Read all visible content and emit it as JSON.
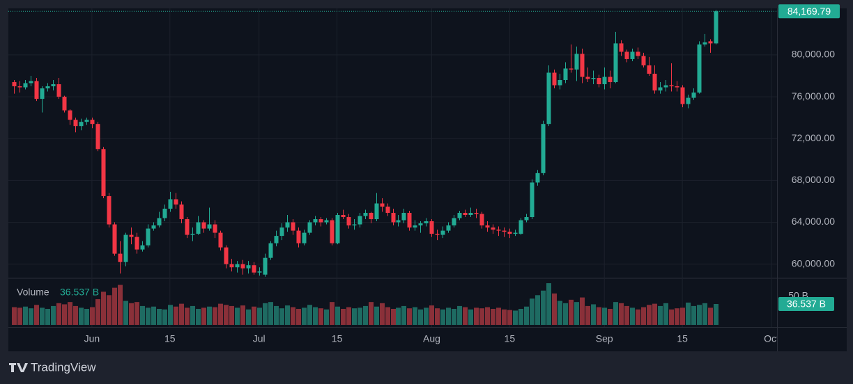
{
  "chart_data": {
    "type": "candlestick",
    "brand": "TradingView",
    "volume_title": "Volume",
    "x": [
      "May 18",
      "May 19",
      "May 20",
      "May 21",
      "May 22",
      "May 23",
      "May 24",
      "May 25",
      "May 26",
      "May 27",
      "May 28",
      "May 29",
      "May 30",
      "May 31",
      "Jun 1",
      "Jun 2",
      "Jun 3",
      "Jun 4",
      "Jun 5",
      "Jun 6",
      "Jun 7",
      "Jun 8",
      "Jun 9",
      "Jun 10",
      "Jun 11",
      "Jun 12",
      "Jun 13",
      "Jun 14",
      "Jun 15",
      "Jun 16",
      "Jun 17",
      "Jun 18",
      "Jun 19",
      "Jun 20",
      "Jun 21",
      "Jun 22",
      "Jun 23",
      "Jun 24",
      "Jun 25",
      "Jun 26",
      "Jun 27",
      "Jun 28",
      "Jun 29",
      "Jun 30",
      "Jul 1",
      "Jul 2",
      "Jul 3",
      "Jul 4",
      "Jul 5",
      "Jul 6",
      "Jul 7",
      "Jul 8",
      "Jul 9",
      "Jul 10",
      "Jul 11",
      "Jul 12",
      "Jul 13",
      "Jul 14",
      "Jul 15",
      "Jul 16",
      "Jul 17",
      "Jul 18",
      "Jul 19",
      "Jul 20",
      "Jul 21",
      "Jul 22",
      "Jul 23",
      "Jul 24",
      "Jul 25",
      "Jul 26",
      "Jul 27",
      "Jul 28",
      "Jul 29",
      "Jul 30",
      "Jul 31",
      "Aug 1",
      "Aug 2",
      "Aug 3",
      "Aug 4",
      "Aug 5",
      "Aug 6",
      "Aug 7",
      "Aug 8",
      "Aug 9",
      "Aug 10",
      "Aug 11",
      "Aug 12",
      "Aug 13",
      "Aug 14",
      "Aug 15",
      "Aug 16",
      "Aug 17",
      "Aug 18",
      "Aug 19",
      "Aug 20",
      "Aug 21",
      "Aug 22",
      "Aug 23",
      "Aug 24",
      "Aug 25",
      "Aug 26",
      "Aug 27",
      "Aug 28",
      "Aug 29",
      "Aug 30",
      "Aug 31",
      "Sep 1",
      "Sep 2",
      "Sep 3",
      "Sep 4",
      "Sep 5",
      "Sep 6",
      "Sep 7",
      "Sep 8",
      "Sep 9",
      "Sep 10",
      "Sep 11",
      "Sep 12",
      "Sep 13",
      "Sep 14",
      "Sep 15",
      "Sep 16",
      "Sep 17",
      "Sep 18",
      "Sep 19",
      "Sep 20",
      "Sep 21"
    ],
    "open": [
      77400,
      77000,
      76900,
      77300,
      77500,
      75800,
      76800,
      77000,
      77200,
      76000,
      74700,
      73800,
      73200,
      73600,
      73800,
      73400,
      71000,
      66500,
      63800,
      61000,
      60200,
      62800,
      62600,
      61400,
      61800,
      63400,
      63700,
      64400,
      65300,
      66200,
      65700,
      64300,
      62800,
      62900,
      64000,
      63400,
      63800,
      63000,
      61600,
      60000,
      59700,
      60000,
      59600,
      59900,
      59200,
      59000,
      60600,
      62000,
      62700,
      63500,
      64000,
      63200,
      62000,
      63000,
      64000,
      64300,
      64000,
      64200,
      62000,
      64700,
      64500,
      63700,
      63800,
      64600,
      64900,
      64300,
      65800,
      65500,
      64900,
      64000,
      64200,
      64900,
      63500,
      63700,
      63900,
      64100,
      62900,
      62800,
      63200,
      63700,
      64400,
      64900,
      64700,
      64900,
      64800,
      63700,
      63500,
      63300,
      63200,
      63100,
      62900,
      62900,
      64200,
      64500,
      67800,
      68700,
      73400,
      78300,
      77100,
      77600,
      78700,
      78600,
      80100,
      77900,
      77700,
      77800,
      77200,
      77900,
      77400,
      81100,
      80300,
      79600,
      80300,
      79900,
      79000,
      78200,
      76600,
      76900,
      77100,
      77000,
      76900,
      75300,
      75900,
      76400,
      81000,
      81300,
      81100
    ],
    "high": [
      77600,
      77500,
      77600,
      78000,
      77800,
      77000,
      77300,
      77600,
      77800,
      76100,
      74800,
      74000,
      73900,
      74000,
      74000,
      73600,
      71200,
      66800,
      64000,
      62200,
      63000,
      63500,
      63000,
      62200,
      63800,
      64000,
      65000,
      65700,
      66900,
      66800,
      66000,
      64500,
      63500,
      64600,
      64200,
      65400,
      64200,
      63200,
      61800,
      60500,
      60300,
      60400,
      60300,
      60200,
      59700,
      61000,
      62200,
      63200,
      63900,
      64700,
      64300,
      63500,
      63300,
      64200,
      64600,
      64500,
      64400,
      64400,
      64900,
      65200,
      64800,
      64300,
      64900,
      65200,
      65000,
      66800,
      66300,
      65800,
      65300,
      64700,
      65300,
      65100,
      64200,
      64100,
      64400,
      64300,
      63300,
      63600,
      64000,
      64700,
      65100,
      65200,
      65400,
      65300,
      65000,
      64100,
      63800,
      63600,
      63500,
      63400,
      63300,
      64400,
      64800,
      68100,
      69000,
      73700,
      79000,
      78600,
      78200,
      79300,
      81000,
      80800,
      80600,
      78800,
      78500,
      78100,
      78800,
      78500,
      82200,
      81400,
      80500,
      80600,
      80700,
      80200,
      79800,
      79000,
      77400,
      77600,
      79200,
      77500,
      77100,
      76200,
      76800,
      81300,
      82000,
      81500,
      84300
    ],
    "low": [
      76300,
      76400,
      76700,
      77000,
      75600,
      74500,
      76500,
      76600,
      75800,
      74500,
      73300,
      72600,
      72800,
      73300,
      73000,
      70800,
      66300,
      63500,
      60800,
      59100,
      59800,
      61900,
      61000,
      61200,
      61600,
      63200,
      63500,
      64100,
      65000,
      65300,
      63900,
      62500,
      62200,
      62800,
      63000,
      63200,
      62500,
      61300,
      59600,
      59300,
      59200,
      59000,
      59100,
      59000,
      58900,
      58800,
      60400,
      61700,
      62300,
      63100,
      62800,
      61600,
      61800,
      62800,
      63700,
      63600,
      63800,
      61800,
      61900,
      64300,
      63400,
      63300,
      63500,
      64300,
      63900,
      64100,
      65000,
      64600,
      63700,
      63600,
      63900,
      63200,
      63200,
      63000,
      63600,
      62600,
      62300,
      62500,
      63000,
      63500,
      64200,
      64500,
      64500,
      64400,
      63400,
      63100,
      62900,
      62700,
      62600,
      62500,
      62700,
      62800,
      64000,
      64300,
      67500,
      68500,
      73200,
      76800,
      76700,
      77300,
      78300,
      77500,
      77300,
      77400,
      77200,
      76900,
      76700,
      76800,
      77300,
      79900,
      79300,
      79400,
      79600,
      78800,
      78000,
      76300,
      76300,
      76500,
      76500,
      76500,
      75000,
      74900,
      75700,
      76300,
      80800,
      80200,
      81000
    ],
    "close": [
      77000,
      76900,
      77300,
      77500,
      75800,
      76800,
      77000,
      77200,
      76000,
      74700,
      73800,
      73200,
      73600,
      73800,
      73400,
      71000,
      66500,
      63800,
      61000,
      60200,
      62800,
      62600,
      61400,
      61800,
      63400,
      63700,
      64400,
      65300,
      66200,
      65700,
      64300,
      62800,
      62900,
      64000,
      63400,
      63800,
      63000,
      61600,
      60000,
      59700,
      60000,
      59600,
      59900,
      59200,
      59300,
      60600,
      62000,
      62700,
      63500,
      64000,
      63200,
      62000,
      63000,
      64000,
      64300,
      64000,
      64200,
      62000,
      64700,
      64500,
      63700,
      63800,
      64600,
      64900,
      64300,
      65800,
      65500,
      64900,
      64000,
      64200,
      64900,
      63500,
      63700,
      63900,
      64100,
      62900,
      62800,
      63200,
      63700,
      64400,
      64900,
      64700,
      64900,
      64800,
      63700,
      63500,
      63300,
      63200,
      63100,
      62900,
      63000,
      64200,
      64500,
      67800,
      68700,
      73400,
      78300,
      77100,
      77600,
      78700,
      78600,
      80100,
      77900,
      77700,
      77800,
      77200,
      77900,
      77400,
      81100,
      80300,
      79600,
      80300,
      79900,
      79000,
      78200,
      76600,
      76900,
      77100,
      77000,
      76900,
      75300,
      75900,
      76400,
      81000,
      81200,
      81100,
      84169.79
    ],
    "volume": [
      31,
      30,
      32,
      29,
      35,
      30,
      28,
      33,
      38,
      36,
      40,
      33,
      30,
      28,
      31,
      45,
      58,
      52,
      65,
      70,
      42,
      38,
      40,
      33,
      30,
      32,
      28,
      27,
      35,
      32,
      37,
      30,
      33,
      28,
      30,
      32,
      31,
      37,
      35,
      33,
      30,
      34,
      27,
      32,
      30,
      38,
      40,
      33,
      29,
      34,
      31,
      28,
      30,
      35,
      31,
      29,
      27,
      40,
      32,
      28,
      31,
      29,
      30,
      33,
      40,
      32,
      38,
      31,
      28,
      30,
      33,
      29,
      31,
      27,
      30,
      34,
      29,
      27,
      30,
      28,
      33,
      31,
      27,
      30,
      29,
      31,
      28,
      30,
      27,
      26,
      25,
      28,
      32,
      46,
      52,
      60,
      73,
      55,
      42,
      38,
      44,
      40,
      48,
      33,
      36,
      31,
      30,
      28,
      40,
      38,
      33,
      30,
      27,
      31,
      35,
      37,
      33,
      38,
      27,
      29,
      30,
      39,
      33,
      35,
      38,
      30,
      36.537
    ],
    "last_close_label": "84,169.79",
    "last_volume_label": "36.537 B",
    "up_color": "#22ab94",
    "down_color": "#f23645",
    "up_volume_color": "#1e6b62",
    "down_volume_color": "#8a3039",
    "xlim": [
      "May 17",
      "Oct 2"
    ],
    "xticks": [
      {
        "value": "Jun 1",
        "label": "Jun"
      },
      {
        "value": "Jun 15",
        "label": "15"
      },
      {
        "value": "Jul 1",
        "label": "Jul"
      },
      {
        "value": "Jul 15",
        "label": "15"
      },
      {
        "value": "Aug 1",
        "label": "Aug"
      },
      {
        "value": "Aug 15",
        "label": "15"
      },
      {
        "value": "Sep 1",
        "label": "Sep"
      },
      {
        "value": "Sep 15",
        "label": "15"
      },
      {
        "value": "Oct 1",
        "label": "Oct"
      }
    ],
    "ylim": [
      58650,
      84450
    ],
    "yticks": [
      {
        "value": 60000,
        "label": "60,000.00"
      },
      {
        "value": 64000,
        "label": "64,000.00"
      },
      {
        "value": 68000,
        "label": "68,000.00"
      },
      {
        "value": 72000,
        "label": "72,000.00"
      },
      {
        "value": 76000,
        "label": "76,000.00"
      },
      {
        "value": 80000,
        "label": "80,000.00"
      }
    ],
    "volume_ylim": [
      0,
      76
    ],
    "volume_yticks": [
      {
        "value": 50,
        "label": "50 B"
      }
    ],
    "grid": true
  }
}
